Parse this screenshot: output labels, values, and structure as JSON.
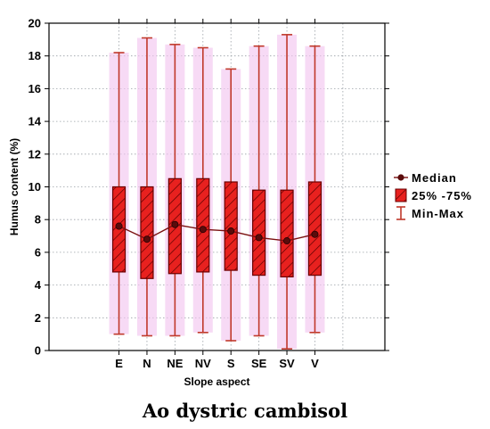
{
  "caption": "Ao dystric cambisol",
  "colors": {
    "box_fill": "#e8211f",
    "box_stroke": "#6a0000",
    "whisker": "#c0392b",
    "glow": "#f3c6f0",
    "median_line": "#7b1010",
    "median_dot": "#5a0c0c",
    "grid": "#9aa0a6"
  },
  "chart_data": {
    "type": "box",
    "title": "",
    "xlabel": "Slope aspect",
    "ylabel": "Humus content (%)",
    "ylim": [
      0,
      20
    ],
    "yticks": [
      0,
      2,
      4,
      6,
      8,
      10,
      12,
      14,
      16,
      18,
      20
    ],
    "categories": [
      "E",
      "N",
      "NE",
      "NV",
      "S",
      "SE",
      "SV",
      "V"
    ],
    "median": [
      7.6,
      6.8,
      7.7,
      7.4,
      7.3,
      6.9,
      6.7,
      7.1
    ],
    "q1": [
      4.8,
      4.4,
      4.7,
      4.8,
      4.9,
      4.6,
      4.5,
      4.6
    ],
    "q3": [
      10.0,
      10.0,
      10.5,
      10.5,
      10.3,
      9.8,
      9.8,
      10.3
    ],
    "min": [
      1.0,
      0.9,
      0.9,
      1.1,
      0.6,
      0.9,
      0.1,
      1.1
    ],
    "max": [
      18.2,
      19.1,
      18.7,
      18.5,
      17.2,
      18.6,
      19.3,
      18.6
    ],
    "grid": true,
    "legend_position": "right",
    "legend": [
      {
        "key": "median",
        "label": "Median"
      },
      {
        "key": "iqr",
        "label": "25% -75%"
      },
      {
        "key": "range",
        "label": "Min-Max"
      }
    ]
  }
}
